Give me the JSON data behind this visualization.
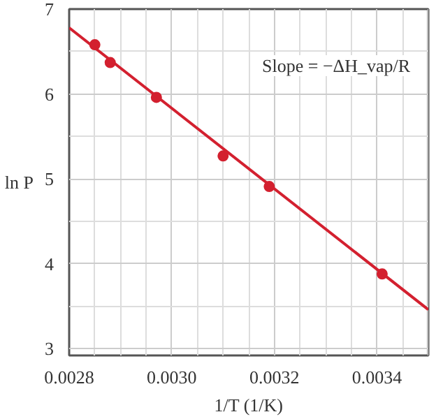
{
  "chart_data": {
    "type": "scatter",
    "xlabel": "1/T (1/K)",
    "ylabel": "ln P",
    "annotations": [
      "Slope = −ΔH_vap/R"
    ],
    "x": [
      0.00285,
      0.00288,
      0.00297,
      0.0031,
      0.00319,
      0.00341
    ],
    "series": [
      {
        "marker": "circle",
        "color": "#d3202f",
        "values": [
          6.58,
          6.37,
          5.96,
          5.27,
          4.91,
          3.88
        ]
      },
      {
        "type": "line",
        "color": "#d3202f",
        "x": [
          0.0028,
          0.0035
        ],
        "values": [
          6.78,
          3.46
        ]
      }
    ],
    "xlim": [
      0.0028,
      0.0035
    ],
    "ylim": [
      2.92,
      7
    ],
    "xticks": [
      {
        "value": 0.0028,
        "label": "0.0028"
      },
      {
        "value": 0.003,
        "label": "0.0030"
      },
      {
        "value": 0.0032,
        "label": "0.0032"
      },
      {
        "value": 0.0034,
        "label": "0.0034"
      }
    ],
    "yticks": [
      3,
      4,
      5,
      6,
      7
    ],
    "grid": true,
    "line_style": "solid"
  }
}
